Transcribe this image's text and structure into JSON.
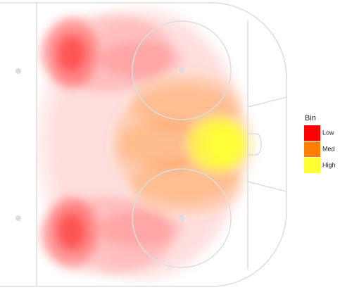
{
  "legend": {
    "title": "Bin",
    "items": [
      {
        "label": "Low",
        "color": "#ff0000"
      },
      {
        "label": "Med",
        "color": "#ff7f00"
      },
      {
        "label": "High",
        "color": "#ffff33"
      }
    ]
  }
}
